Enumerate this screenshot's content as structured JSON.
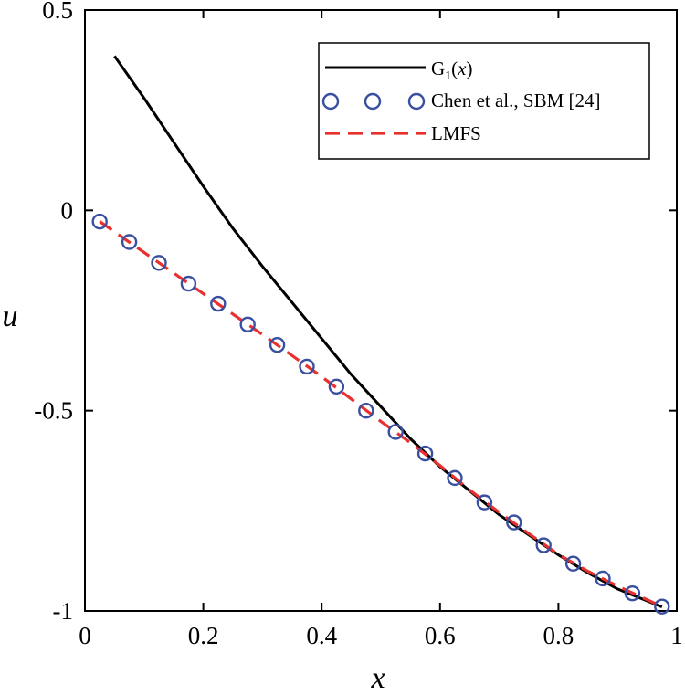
{
  "chart_data": {
    "type": "line",
    "xlabel": "x",
    "ylabel": "u",
    "xlim": [
      0,
      1
    ],
    "ylim": [
      -1,
      0.5
    ],
    "xticks": [
      0,
      0.2,
      0.4,
      0.6,
      0.8,
      1
    ],
    "xtick_labels": [
      "0",
      "0.2",
      "0.4",
      "0.6",
      "0.8",
      "1"
    ],
    "yticks": [
      -1,
      -0.5,
      0,
      0.5
    ],
    "ytick_labels": [
      "-1",
      "-0.5",
      "0",
      "0.5"
    ],
    "grid": false,
    "legend_position": "top-right",
    "series": [
      {
        "name_parts": [
          "G",
          "1",
          "(",
          "x",
          ")"
        ],
        "style": "solid-line",
        "color": "#000000",
        "x": [
          0.05,
          0.1,
          0.15,
          0.2,
          0.25,
          0.3,
          0.35,
          0.4,
          0.45,
          0.5,
          0.55,
          0.6,
          0.65,
          0.7,
          0.75,
          0.8,
          0.85,
          0.9,
          0.95,
          0.975
        ],
        "y": [
          0.385,
          0.28,
          0.17,
          0.06,
          -0.045,
          -0.14,
          -0.23,
          -0.32,
          -0.41,
          -0.49,
          -0.57,
          -0.64,
          -0.7,
          -0.76,
          -0.81,
          -0.86,
          -0.905,
          -0.945,
          -0.975,
          -0.99
        ]
      },
      {
        "name": "Chen et al., SBM [24]",
        "style": "open-circle",
        "color": "#3a4fa0",
        "x": [
          0.025,
          0.075,
          0.125,
          0.175,
          0.225,
          0.275,
          0.325,
          0.375,
          0.425,
          0.475,
          0.525,
          0.575,
          0.625,
          0.675,
          0.725,
          0.775,
          0.825,
          0.875,
          0.925,
          0.975
        ],
        "y": [
          -0.028,
          -0.079,
          -0.131,
          -0.183,
          -0.233,
          -0.285,
          -0.336,
          -0.39,
          -0.44,
          -0.5,
          -0.553,
          -0.607,
          -0.668,
          -0.729,
          -0.779,
          -0.836,
          -0.882,
          -0.919,
          -0.956,
          -0.989
        ]
      },
      {
        "name": "LMFS",
        "style": "dashed-line",
        "color": "#e8312f",
        "x": [
          0.025,
          0.1,
          0.2,
          0.3,
          0.4,
          0.5,
          0.55,
          0.6,
          0.65,
          0.7,
          0.75,
          0.8,
          0.85,
          0.9,
          0.95,
          0.975
        ],
        "y": [
          -0.028,
          -0.105,
          -0.208,
          -0.31,
          -0.415,
          -0.527,
          -0.58,
          -0.637,
          -0.698,
          -0.754,
          -0.807,
          -0.859,
          -0.901,
          -0.938,
          -0.972,
          -0.989
        ]
      }
    ]
  }
}
